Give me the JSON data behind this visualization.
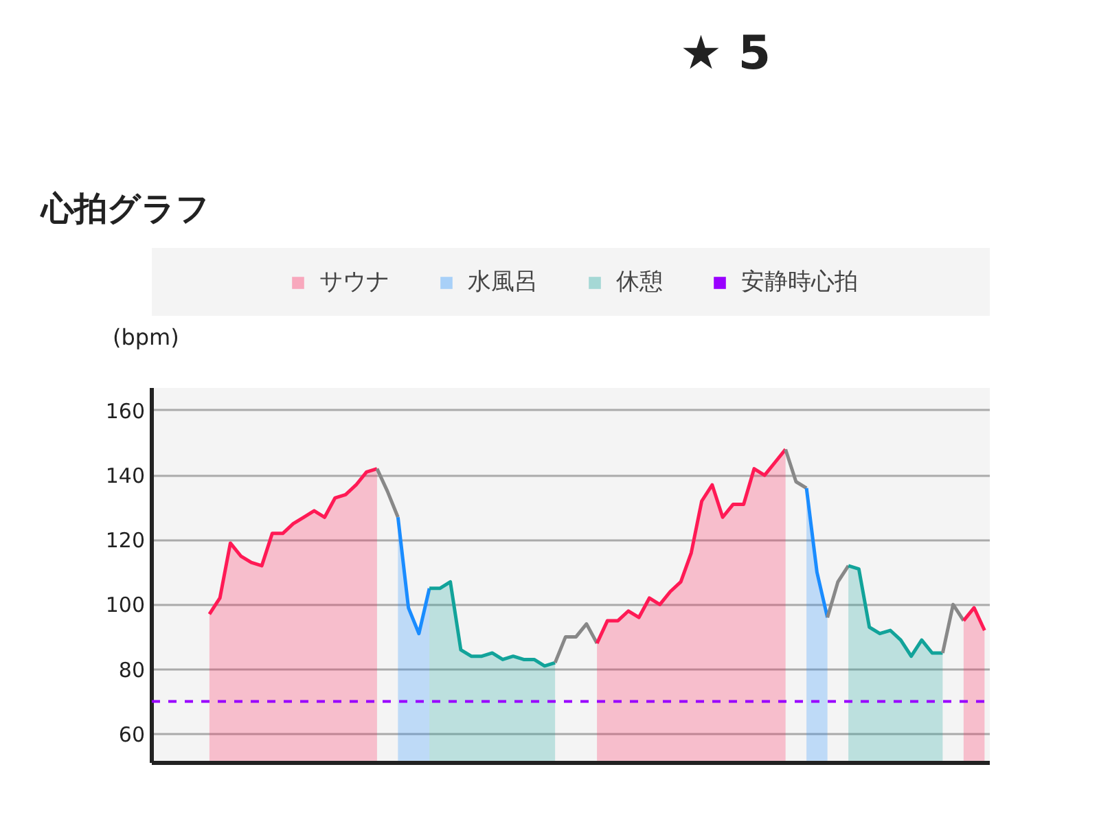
{
  "chart_data": {
    "type": "area",
    "title": "心拍グラフ",
    "ylabel": "(bpm)",
    "annotations": [
      "★ 5"
    ],
    "categories": [
      null,
      null,
      null,
      null,
      null,
      null,
      null,
      null,
      null,
      null,
      null,
      null,
      null,
      null,
      null,
      null,
      null,
      null,
      null,
      null,
      null,
      null,
      null,
      null,
      null,
      null,
      null,
      null,
      null,
      null,
      null,
      null,
      null,
      null,
      null,
      null,
      null,
      null,
      null,
      null,
      null,
      null,
      null,
      null,
      null,
      null,
      null,
      null,
      null,
      null,
      null,
      null,
      null,
      null,
      null,
      null,
      null,
      null,
      null,
      null,
      null,
      null,
      null,
      null,
      null,
      null,
      null,
      null,
      null,
      null,
      null,
      null,
      null,
      null,
      null,
      null,
      null,
      null,
      null,
      null
    ],
    "ylim": [
      51,
      167
    ],
    "yticks": [
      60,
      80,
      100,
      120,
      140,
      160
    ],
    "grid": "y",
    "legend": "top",
    "ref_lines": [
      {
        "axis": "y",
        "value": 70,
        "label": "安静時心拍",
        "color": "#9900ff",
        "line_style": "dashed"
      }
    ],
    "series": [
      {
        "name": "サウナ",
        "color": "#ff1a55",
        "values": [
          null,
          null,
          null,
          null,
          null,
          97,
          102,
          119,
          115,
          113,
          112,
          122,
          122,
          125,
          127,
          129,
          127,
          133,
          134,
          137,
          141,
          142,
          null,
          null,
          null,
          null,
          null,
          null,
          null,
          null,
          null,
          null,
          null,
          null,
          null,
          null,
          null,
          null,
          null,
          null,
          null,
          null,
          null,
          null,
          null,
          null,
          null,
          null,
          null,
          null,
          null,
          null,
          null,
          null,
          null,
          null,
          null,
          null,
          null,
          null,
          null,
          null,
          null,
          null,
          null,
          null,
          null,
          null,
          null,
          null,
          null,
          null,
          null,
          null,
          null,
          null,
          null,
          null,
          null,
          null
        ]
      },
      {
        "type": "line",
        "color": "#888888",
        "values": [
          null,
          null,
          null,
          null,
          null,
          null,
          null,
          null,
          null,
          null,
          null,
          null,
          null,
          null,
          null,
          null,
          null,
          null,
          null,
          null,
          null,
          142,
          135,
          127,
          null,
          null,
          null,
          null,
          null,
          null,
          null,
          null,
          null,
          null,
          null,
          null,
          null,
          null,
          null,
          null,
          null,
          null,
          null,
          null,
          null,
          null,
          null,
          null,
          null,
          null,
          null,
          null,
          null,
          null,
          null,
          null,
          null,
          null,
          null,
          null,
          null,
          null,
          null,
          null,
          null,
          null,
          null,
          null,
          null,
          null,
          null,
          null,
          null,
          null,
          null,
          null,
          null,
          null,
          null,
          null
        ]
      },
      {
        "name": "水風呂",
        "color": "#1a8cff",
        "values": [
          null,
          null,
          null,
          null,
          null,
          null,
          null,
          null,
          null,
          null,
          null,
          null,
          null,
          null,
          null,
          null,
          null,
          null,
          null,
          null,
          null,
          null,
          null,
          127,
          99,
          91,
          105,
          null,
          null,
          null,
          null,
          null,
          null,
          null,
          null,
          null,
          null,
          null,
          null,
          null,
          null,
          null,
          null,
          null,
          null,
          null,
          null,
          null,
          null,
          null,
          null,
          null,
          null,
          null,
          null,
          null,
          null,
          null,
          null,
          null,
          null,
          null,
          null,
          null,
          null,
          null,
          null,
          null,
          null,
          null,
          null,
          null,
          null,
          null,
          null,
          null,
          null,
          null,
          null,
          null
        ]
      },
      {
        "name": "休憩",
        "color": "#12a39a",
        "values": [
          null,
          null,
          null,
          null,
          null,
          null,
          null,
          null,
          null,
          null,
          null,
          null,
          null,
          null,
          null,
          null,
          null,
          null,
          null,
          null,
          null,
          null,
          null,
          null,
          null,
          null,
          105,
          105,
          107,
          86,
          84,
          84,
          85,
          83,
          84,
          83,
          83,
          81,
          82,
          null,
          null,
          null,
          null,
          null,
          null,
          null,
          null,
          null,
          null,
          null,
          null,
          null,
          null,
          null,
          null,
          null,
          null,
          null,
          null,
          null,
          null,
          null,
          null,
          null,
          null,
          null,
          null,
          null,
          null,
          null,
          null,
          null,
          null,
          null,
          null,
          null,
          null,
          null,
          null,
          null
        ]
      },
      {
        "type": "line",
        "color": "#888888",
        "values": [
          null,
          null,
          null,
          null,
          null,
          null,
          null,
          null,
          null,
          null,
          null,
          null,
          null,
          null,
          null,
          null,
          null,
          null,
          null,
          null,
          null,
          null,
          null,
          null,
          null,
          null,
          null,
          null,
          null,
          null,
          null,
          null,
          null,
          null,
          null,
          null,
          null,
          null,
          82,
          90,
          90,
          94,
          88,
          null,
          null,
          null,
          null,
          null,
          null,
          null,
          null,
          null,
          null,
          null,
          null,
          null,
          null,
          null,
          null,
          null,
          null,
          null,
          null,
          null,
          null,
          null,
          null,
          null,
          null,
          null,
          null,
          null,
          null,
          null,
          null,
          null,
          null,
          null,
          null,
          null
        ]
      },
      {
        "type": "area",
        "color": "#ff1a55",
        "values": [
          null,
          null,
          null,
          null,
          null,
          null,
          null,
          null,
          null,
          null,
          null,
          null,
          null,
          null,
          null,
          null,
          null,
          null,
          null,
          null,
          null,
          null,
          null,
          null,
          null,
          null,
          null,
          null,
          null,
          null,
          null,
          null,
          null,
          null,
          null,
          null,
          null,
          null,
          null,
          null,
          null,
          null,
          88,
          95,
          95,
          98,
          96,
          102,
          100,
          104,
          107,
          116,
          132,
          137,
          127,
          131,
          131,
          142,
          140,
          144,
          148,
          null,
          null,
          null,
          null,
          null,
          null,
          null,
          null,
          null,
          null,
          null,
          null,
          null,
          null,
          null,
          null,
          null,
          null,
          null
        ]
      },
      {
        "type": "line",
        "color": "#888888",
        "values": [
          null,
          null,
          null,
          null,
          null,
          null,
          null,
          null,
          null,
          null,
          null,
          null,
          null,
          null,
          null,
          null,
          null,
          null,
          null,
          null,
          null,
          null,
          null,
          null,
          null,
          null,
          null,
          null,
          null,
          null,
          null,
          null,
          null,
          null,
          null,
          null,
          null,
          null,
          null,
          null,
          null,
          null,
          null,
          null,
          null,
          null,
          null,
          null,
          null,
          null,
          null,
          null,
          null,
          null,
          null,
          null,
          null,
          null,
          null,
          null,
          148,
          138,
          136,
          null,
          null,
          null,
          null,
          null,
          null,
          null,
          null,
          null,
          null,
          null,
          null,
          null,
          null,
          null,
          null,
          null
        ]
      },
      {
        "type": "area",
        "color": "#1a8cff",
        "values": [
          null,
          null,
          null,
          null,
          null,
          null,
          null,
          null,
          null,
          null,
          null,
          null,
          null,
          null,
          null,
          null,
          null,
          null,
          null,
          null,
          null,
          null,
          null,
          null,
          null,
          null,
          null,
          null,
          null,
          null,
          null,
          null,
          null,
          null,
          null,
          null,
          null,
          null,
          null,
          null,
          null,
          null,
          null,
          null,
          null,
          null,
          null,
          null,
          null,
          null,
          null,
          null,
          null,
          null,
          null,
          null,
          null,
          null,
          null,
          null,
          null,
          null,
          136,
          110,
          96,
          null,
          null,
          null,
          null,
          null,
          null,
          null,
          null,
          null,
          null,
          null,
          null,
          null,
          null,
          null
        ]
      },
      {
        "type": "line",
        "color": "#888888",
        "values": [
          null,
          null,
          null,
          null,
          null,
          null,
          null,
          null,
          null,
          null,
          null,
          null,
          null,
          null,
          null,
          null,
          null,
          null,
          null,
          null,
          null,
          null,
          null,
          null,
          null,
          null,
          null,
          null,
          null,
          null,
          null,
          null,
          null,
          null,
          null,
          null,
          null,
          null,
          null,
          null,
          null,
          null,
          null,
          null,
          null,
          null,
          null,
          null,
          null,
          null,
          null,
          null,
          null,
          null,
          null,
          null,
          null,
          null,
          null,
          null,
          null,
          null,
          null,
          null,
          96,
          107,
          112,
          null,
          null,
          null,
          null,
          null,
          null,
          null,
          null,
          null,
          null,
          null,
          null,
          null
        ]
      },
      {
        "type": "area",
        "color": "#12a39a",
        "values": [
          null,
          null,
          null,
          null,
          null,
          null,
          null,
          null,
          null,
          null,
          null,
          null,
          null,
          null,
          null,
          null,
          null,
          null,
          null,
          null,
          null,
          null,
          null,
          null,
          null,
          null,
          null,
          null,
          null,
          null,
          null,
          null,
          null,
          null,
          null,
          null,
          null,
          null,
          null,
          null,
          null,
          null,
          null,
          null,
          null,
          null,
          null,
          null,
          null,
          null,
          null,
          null,
          null,
          null,
          null,
          null,
          null,
          null,
          null,
          null,
          null,
          null,
          null,
          null,
          null,
          null,
          112,
          111,
          93,
          91,
          92,
          89,
          84,
          89,
          85,
          85,
          null,
          null,
          null,
          null
        ]
      },
      {
        "type": "line",
        "color": "#888888",
        "values": [
          null,
          null,
          null,
          null,
          null,
          null,
          null,
          null,
          null,
          null,
          null,
          null,
          null,
          null,
          null,
          null,
          null,
          null,
          null,
          null,
          null,
          null,
          null,
          null,
          null,
          null,
          null,
          null,
          null,
          null,
          null,
          null,
          null,
          null,
          null,
          null,
          null,
          null,
          null,
          null,
          null,
          null,
          null,
          null,
          null,
          null,
          null,
          null,
          null,
          null,
          null,
          null,
          null,
          null,
          null,
          null,
          null,
          null,
          null,
          null,
          null,
          null,
          null,
          null,
          null,
          null,
          null,
          null,
          null,
          null,
          null,
          null,
          null,
          null,
          null,
          85,
          100,
          95,
          null,
          null
        ]
      },
      {
        "type": "area",
        "color": "#ff1a55",
        "values": [
          null,
          null,
          null,
          null,
          null,
          null,
          null,
          null,
          null,
          null,
          null,
          null,
          null,
          null,
          null,
          null,
          null,
          null,
          null,
          null,
          null,
          null,
          null,
          null,
          null,
          null,
          null,
          null,
          null,
          null,
          null,
          null,
          null,
          null,
          null,
          null,
          null,
          null,
          null,
          null,
          null,
          null,
          null,
          null,
          null,
          null,
          null,
          null,
          null,
          null,
          null,
          null,
          null,
          null,
          null,
          null,
          null,
          null,
          null,
          null,
          null,
          null,
          null,
          null,
          null,
          null,
          null,
          null,
          null,
          null,
          null,
          null,
          null,
          null,
          null,
          null,
          null,
          95,
          99,
          92
        ]
      }
    ]
  }
}
